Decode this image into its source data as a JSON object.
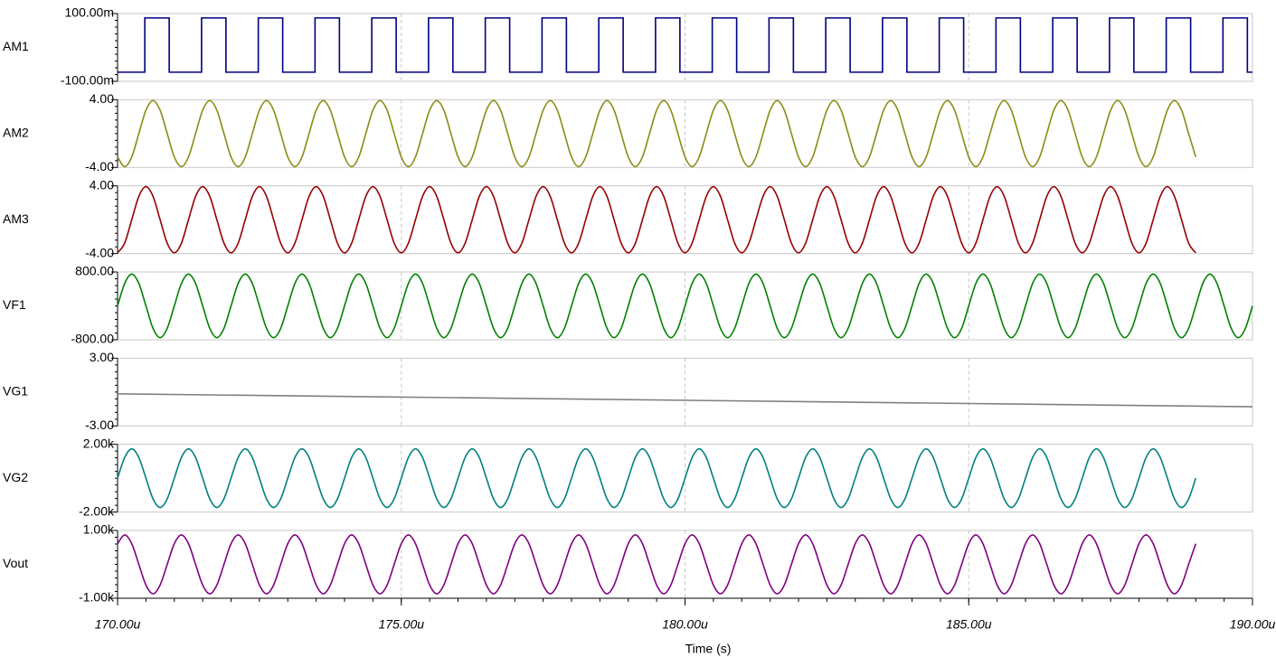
{
  "chart_data": {
    "type": "line",
    "xlabel": "Time (s)",
    "xlim": [
      170,
      190
    ],
    "xticks": [
      {
        "value": 170,
        "label": "170.00u"
      },
      {
        "value": 175,
        "label": "175.00u"
      },
      {
        "value": 180,
        "label": "180.00u"
      },
      {
        "value": 185,
        "label": "185.00u"
      },
      {
        "value": 190,
        "label": "190.00u"
      }
    ],
    "grid": true,
    "x": [
      170,
      170.125,
      170.25,
      170.375,
      170.5,
      170.625,
      170.75,
      170.875,
      171,
      171.125,
      171.25,
      171.375,
      171.5,
      171.625,
      171.75,
      171.875,
      172,
      172.125,
      172.25,
      172.375,
      172.5,
      172.625,
      172.75,
      172.875,
      173,
      173.125,
      173.25,
      173.375,
      173.5,
      173.625,
      173.75,
      173.875,
      174,
      174.125,
      174.25,
      174.375,
      174.5,
      174.625,
      174.75,
      174.875,
      175,
      175.125,
      175.25,
      175.375,
      175.5,
      175.625,
      175.75,
      175.875,
      176,
      176.125,
      176.25,
      176.375,
      176.5,
      176.625,
      176.75,
      176.875,
      177,
      177.125,
      177.25,
      177.375,
      177.5,
      177.625,
      177.75,
      177.875,
      178,
      178.125,
      178.25,
      178.375,
      178.5,
      178.625,
      178.75,
      178.875,
      179,
      179.125,
      179.25,
      179.375,
      179.5,
      179.625,
      179.75,
      179.875,
      180,
      180.125,
      180.25,
      180.375,
      180.5,
      180.625,
      180.75,
      180.875,
      181,
      181.125,
      181.25,
      181.375,
      181.5,
      181.625,
      181.75,
      181.875,
      182,
      182.125,
      182.25,
      182.375,
      182.5,
      182.625,
      182.75,
      182.875,
      183,
      183.125,
      183.25,
      183.375,
      183.5,
      183.625,
      183.75,
      183.875,
      184,
      184.125,
      184.25,
      184.375,
      184.5,
      184.625,
      184.75,
      184.875,
      185,
      185.125,
      185.25,
      185.375,
      185.5,
      185.625,
      185.75,
      185.875,
      186,
      186.125,
      186.25,
      186.375,
      186.5,
      186.625,
      186.75,
      186.875,
      187,
      187.125,
      187.25,
      187.375,
      187.5,
      187.625,
      187.75,
      187.875,
      188,
      188.125,
      188.25,
      188.375,
      188.5,
      188.625,
      188.75,
      188.875,
      189,
      189.125,
      189.25,
      189.375,
      189.5,
      189.625,
      189.75,
      189.875,
      190
    ],
    "panels": [
      {
        "label": "AM1",
        "color": "#000080",
        "label_color": "#000000",
        "ylim": [
          -100,
          100
        ],
        "yticks": [
          {
            "value": -100,
            "label": "-100.00m"
          },
          {
            "value": 100,
            "label": "100.00m"
          }
        ],
        "x": [
          170,
          170.48,
          170.48,
          170.91,
          170.91,
          171.48,
          171.48,
          171.91,
          171.91,
          172.48,
          172.48,
          172.91,
          172.91,
          173.48,
          173.48,
          173.91,
          173.91,
          174.48,
          174.48,
          174.91,
          174.91,
          175.48,
          175.48,
          175.91,
          175.91,
          176.48,
          176.48,
          176.91,
          176.91,
          177.48,
          177.48,
          177.91,
          177.91,
          178.48,
          178.48,
          178.91,
          178.91,
          179.48,
          179.48,
          179.91,
          179.91,
          180.48,
          180.48,
          180.91,
          180.91,
          181.48,
          181.48,
          181.91,
          181.91,
          182.48,
          182.48,
          182.91,
          182.91,
          183.48,
          183.48,
          183.91,
          183.91,
          184.48,
          184.48,
          184.91,
          184.91,
          185.48,
          185.48,
          185.91,
          185.91,
          186.48,
          186.48,
          186.91,
          186.91,
          187.48,
          187.48,
          187.91,
          187.91,
          188.48,
          188.48,
          188.91,
          188.91,
          189.48,
          189.48,
          189.91,
          189.91,
          190
        ],
        "values": [
          -73,
          -73,
          87,
          87,
          -73,
          -73,
          87,
          87,
          -73,
          -73,
          87,
          87,
          -73,
          -73,
          87,
          87,
          -73,
          -73,
          87,
          87,
          -73,
          -73,
          87,
          87,
          -73,
          -73,
          87,
          87,
          -73,
          -73,
          87,
          87,
          -73,
          -73,
          87,
          87,
          -73,
          -73,
          87,
          87,
          -73,
          -73,
          87,
          87,
          -73,
          -73,
          87,
          87,
          -73,
          -73,
          87,
          87,
          -73,
          -73,
          87,
          87,
          -73,
          -73,
          87,
          87,
          -73,
          -73,
          87,
          87,
          -73,
          -73,
          87,
          87,
          -73,
          -73,
          87,
          87,
          -73,
          -73,
          87,
          87,
          -73,
          -73,
          87,
          87,
          -73,
          -73
        ]
      },
      {
        "label": "AM2",
        "color": "#8c8c14",
        "ylim": [
          -4,
          4
        ],
        "yticks": [
          {
            "value": -4,
            "label": "-4.00"
          },
          {
            "value": 4,
            "label": "4.00"
          }
        ],
        "values": [
          -2.76,
          -3.9,
          -2.76,
          0,
          2.76,
          3.9,
          2.76,
          0,
          -2.76,
          -3.9,
          -2.76,
          0,
          2.76,
          3.9,
          2.76,
          0,
          -2.76,
          -3.9,
          -2.76,
          0,
          2.76,
          3.9,
          2.76,
          0,
          -2.76,
          -3.9,
          -2.76,
          0,
          2.76,
          3.9,
          2.76,
          0,
          -2.76,
          -3.9,
          -2.76,
          0,
          2.76,
          3.9,
          2.76,
          0,
          -2.76,
          -3.9,
          -2.76,
          0,
          2.76,
          3.9,
          2.76,
          0,
          -2.76,
          -3.9,
          -2.76,
          0,
          2.76,
          3.9,
          2.76,
          0,
          -2.76,
          -3.9,
          -2.76,
          0,
          2.76,
          3.9,
          2.76,
          0,
          -2.76,
          -3.9,
          -2.76,
          0,
          2.76,
          3.9,
          2.76,
          0,
          -2.76,
          -3.9,
          -2.76,
          0,
          2.76,
          3.9,
          2.76,
          0,
          -2.76,
          -3.9,
          -2.76,
          0,
          2.76,
          3.9,
          2.76,
          0,
          -2.76,
          -3.9,
          -2.76,
          0,
          2.76,
          3.9,
          2.76,
          0,
          -2.76,
          -3.9,
          -2.76,
          0,
          2.76,
          3.9,
          2.76,
          0,
          -2.76,
          -3.9,
          -2.76,
          0,
          2.76,
          3.9,
          2.76,
          0,
          -2.76,
          -3.9,
          -2.76,
          0,
          2.76,
          3.9,
          2.76,
          0,
          -2.76,
          -3.9,
          -2.76,
          0,
          2.76,
          3.9,
          2.76,
          0,
          -2.76,
          -3.9,
          -2.76,
          0,
          2.76,
          3.9,
          2.76,
          0,
          -2.76,
          -3.9,
          -2.76,
          0,
          2.76,
          3.9,
          2.76,
          0,
          -2.76,
          -3.9,
          -2.76,
          0,
          2.76,
          3.9,
          2.76,
          0,
          -2.76
        ]
      },
      {
        "label": "AM3",
        "color": "#960000",
        "ylim": [
          -4,
          4
        ],
        "yticks": [
          {
            "value": -4,
            "label": "-4.00"
          },
          {
            "value": 4,
            "label": "4.00"
          }
        ],
        "values": [
          -3.9,
          -2.76,
          0,
          2.76,
          3.9,
          2.76,
          0,
          -2.76,
          -3.9,
          -2.76,
          0,
          2.76,
          3.9,
          2.76,
          0,
          -2.76,
          -3.9,
          -2.76,
          0,
          2.76,
          3.9,
          2.76,
          0,
          -2.76,
          -3.9,
          -2.76,
          0,
          2.76,
          3.9,
          2.76,
          0,
          -2.76,
          -3.9,
          -2.76,
          0,
          2.76,
          3.9,
          2.76,
          0,
          -2.76,
          -3.9,
          -2.76,
          0,
          2.76,
          3.9,
          2.76,
          0,
          -2.76,
          -3.9,
          -2.76,
          0,
          2.76,
          3.9,
          2.76,
          0,
          -2.76,
          -3.9,
          -2.76,
          0,
          2.76,
          3.9,
          2.76,
          0,
          -2.76,
          -3.9,
          -2.76,
          0,
          2.76,
          3.9,
          2.76,
          0,
          -2.76,
          -3.9,
          -2.76,
          0,
          2.76,
          3.9,
          2.76,
          0,
          -2.76,
          -3.9,
          -2.76,
          0,
          2.76,
          3.9,
          2.76,
          0,
          -2.76,
          -3.9,
          -2.76,
          0,
          2.76,
          3.9,
          2.76,
          0,
          -2.76,
          -3.9,
          -2.76,
          0,
          2.76,
          3.9,
          2.76,
          0,
          -2.76,
          -3.9,
          -2.76,
          0,
          2.76,
          3.9,
          2.76,
          0,
          -2.76,
          -3.9,
          -2.76,
          0,
          2.76,
          3.9,
          2.76,
          0,
          -2.76,
          -3.9,
          -2.76,
          0,
          2.76,
          3.9,
          2.76,
          0,
          -2.76,
          -3.9,
          -2.76,
          0,
          2.76,
          3.9,
          2.76,
          0,
          -2.76,
          -3.9,
          -2.76,
          0,
          2.76,
          3.9,
          2.76,
          0,
          -2.76,
          -3.9,
          -2.76,
          0,
          2.76,
          3.9,
          2.76,
          0,
          -2.76,
          -3.9
        ]
      },
      {
        "label": "VF1",
        "color": "#008000",
        "ylim": [
          -800,
          800
        ],
        "yticks": [
          {
            "value": -800,
            "label": "-800.00"
          },
          {
            "value": 800,
            "label": "800.00"
          }
        ],
        "values": [
          0,
          530,
          750,
          530,
          0,
          -530,
          -750,
          -530,
          0,
          530,
          750,
          530,
          0,
          -530,
          -750,
          -530,
          0,
          530,
          750,
          530,
          0,
          -530,
          -750,
          -530,
          0,
          530,
          750,
          530,
          0,
          -530,
          -750,
          -530,
          0,
          530,
          750,
          530,
          0,
          -530,
          -750,
          -530,
          0,
          530,
          750,
          530,
          0,
          -530,
          -750,
          -530,
          0,
          530,
          750,
          530,
          0,
          -530,
          -750,
          -530,
          0,
          530,
          750,
          530,
          0,
          -530,
          -750,
          -530,
          0,
          530,
          750,
          530,
          0,
          -530,
          -750,
          -530,
          0,
          530,
          750,
          530,
          0,
          -530,
          -750,
          -530,
          0,
          530,
          750,
          530,
          0,
          -530,
          -750,
          -530,
          0,
          530,
          750,
          530,
          0,
          -530,
          -750,
          -530,
          0,
          530,
          750,
          530,
          0,
          -530,
          -750,
          -530,
          0,
          530,
          750,
          530,
          0,
          -530,
          -750,
          -530,
          0,
          530,
          750,
          530,
          0,
          -530,
          -750,
          -530,
          0,
          530,
          750,
          530,
          0,
          -530,
          -750,
          -530,
          0,
          530,
          750,
          530,
          0,
          -530,
          -750,
          -530,
          0,
          530,
          750,
          530,
          0,
          -530,
          -750,
          -530,
          0,
          530,
          750,
          530,
          0,
          -530,
          -750,
          -530,
          0,
          530,
          750,
          530,
          0,
          -530,
          -750,
          -530,
          0
        ]
      },
      {
        "label": "VG1",
        "color": "#808080",
        "ylim": [
          -3,
          3
        ],
        "yticks": [
          {
            "value": -3,
            "label": "-3.00"
          },
          {
            "value": 3,
            "label": "3.00"
          }
        ],
        "x": [
          170,
          190
        ],
        "values": [
          -0.16,
          -1.3
        ]
      },
      {
        "label": "VG2",
        "color": "#008080",
        "ylim": [
          -2,
          2
        ],
        "yticks": [
          {
            "value": -2,
            "label": "-2.00k"
          },
          {
            "value": 2,
            "label": "2.00k"
          }
        ],
        "values": [
          0,
          1.22,
          1.73,
          1.22,
          0,
          -1.22,
          -1.73,
          -1.22,
          0,
          1.22,
          1.73,
          1.22,
          0,
          -1.22,
          -1.73,
          -1.22,
          0,
          1.22,
          1.73,
          1.22,
          0,
          -1.22,
          -1.73,
          -1.22,
          0,
          1.22,
          1.73,
          1.22,
          0,
          -1.22,
          -1.73,
          -1.22,
          0,
          1.22,
          1.73,
          1.22,
          0,
          -1.22,
          -1.73,
          -1.22,
          0,
          1.22,
          1.73,
          1.22,
          0,
          -1.22,
          -1.73,
          -1.22,
          0,
          1.22,
          1.73,
          1.22,
          0,
          -1.22,
          -1.73,
          -1.22,
          0,
          1.22,
          1.73,
          1.22,
          0,
          -1.22,
          -1.73,
          -1.22,
          0,
          1.22,
          1.73,
          1.22,
          0,
          -1.22,
          -1.73,
          -1.22,
          0,
          1.22,
          1.73,
          1.22,
          0,
          -1.22,
          -1.73,
          -1.22,
          0,
          1.22,
          1.73,
          1.22,
          0,
          -1.22,
          -1.73,
          -1.22,
          0,
          1.22,
          1.73,
          1.22,
          0,
          -1.22,
          -1.73,
          -1.22,
          0,
          1.22,
          1.73,
          1.22,
          0,
          -1.22,
          -1.73,
          -1.22,
          0,
          1.22,
          1.73,
          1.22,
          0,
          -1.22,
          -1.73,
          -1.22,
          0,
          1.22,
          1.73,
          1.22,
          0,
          -1.22,
          -1.73,
          -1.22,
          0,
          1.22,
          1.73,
          1.22,
          0,
          -1.22,
          -1.73,
          -1.22,
          0,
          1.22,
          1.73,
          1.22,
          0,
          -1.22,
          -1.73,
          -1.22,
          0,
          1.22,
          1.73,
          1.22,
          0,
          -1.22,
          -1.73,
          -1.22,
          0,
          1.22,
          1.73,
          1.22,
          0,
          -1.22,
          -1.73,
          -1.22,
          0
        ]
      },
      {
        "label": "Vout",
        "color": "#800080",
        "ylim": [
          -1,
          1
        ],
        "yticks": [
          {
            "value": -1,
            "label": "-1.00k"
          },
          {
            "value": 1,
            "label": "1.00k"
          }
        ],
        "values": [
          0.61,
          0.867,
          0.61,
          0,
          -0.61,
          -0.867,
          -0.61,
          0,
          0.61,
          0.867,
          0.61,
          0,
          -0.61,
          -0.867,
          -0.61,
          0,
          0.61,
          0.867,
          0.61,
          0,
          -0.61,
          -0.867,
          -0.61,
          0,
          0.61,
          0.867,
          0.61,
          0,
          -0.61,
          -0.867,
          -0.61,
          0,
          0.61,
          0.867,
          0.61,
          0,
          -0.61,
          -0.867,
          -0.61,
          0,
          0.61,
          0.867,
          0.61,
          0,
          -0.61,
          -0.867,
          -0.61,
          0,
          0.61,
          0.867,
          0.61,
          0,
          -0.61,
          -0.867,
          -0.61,
          0,
          0.61,
          0.867,
          0.61,
          0,
          -0.61,
          -0.867,
          -0.61,
          0,
          0.61,
          0.867,
          0.61,
          0,
          -0.61,
          -0.867,
          -0.61,
          0,
          0.61,
          0.867,
          0.61,
          0,
          -0.61,
          -0.867,
          -0.61,
          0,
          0.61,
          0.867,
          0.61,
          0,
          -0.61,
          -0.867,
          -0.61,
          0,
          0.61,
          0.867,
          0.61,
          0,
          -0.61,
          -0.867,
          -0.61,
          0,
          0.61,
          0.867,
          0.61,
          0,
          -0.61,
          -0.867,
          -0.61,
          0,
          0.61,
          0.867,
          0.61,
          0,
          -0.61,
          -0.867,
          -0.61,
          0,
          0.61,
          0.867,
          0.61,
          0,
          -0.61,
          -0.867,
          -0.61,
          0,
          0.61,
          0.867,
          0.61,
          0,
          -0.61,
          -0.867,
          -0.61,
          0,
          0.61,
          0.867,
          0.61,
          0,
          -0.61,
          -0.867,
          -0.61,
          0,
          0.61,
          0.867,
          0.61,
          0,
          -0.61,
          -0.867,
          -0.61,
          0,
          0.61,
          0.867,
          0.61,
          0,
          -0.61,
          -0.867,
          -0.61,
          0,
          0.61
        ]
      }
    ]
  }
}
